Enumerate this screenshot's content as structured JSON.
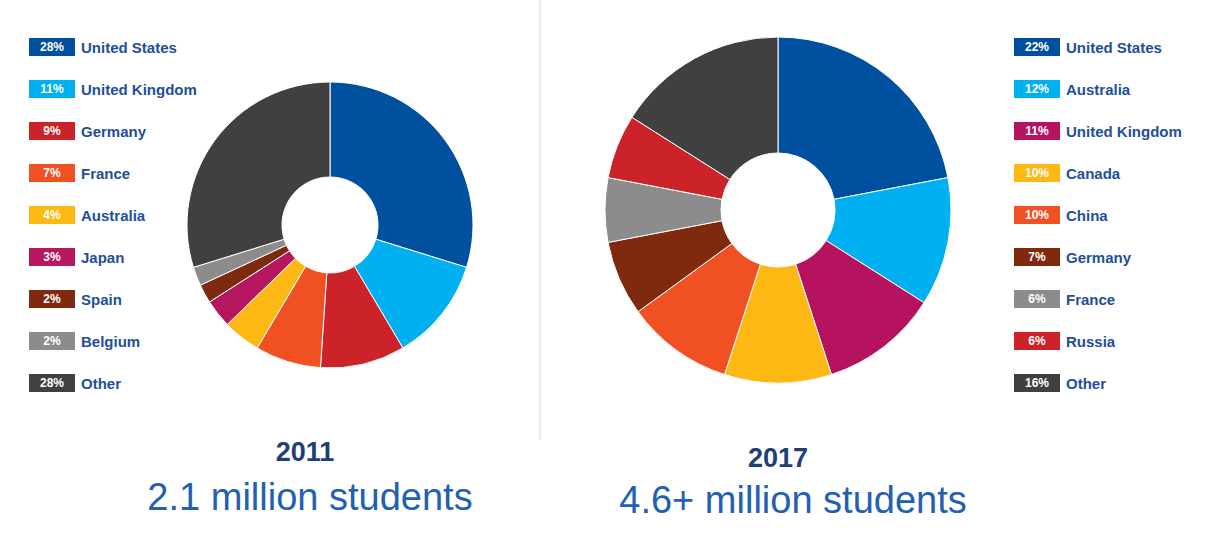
{
  "chart_data": [
    {
      "type": "pie",
      "title": "2011",
      "subtitle": "2.1 million students",
      "categories": [
        "United States",
        "United Kingdom",
        "Germany",
        "France",
        "Australia",
        "Japan",
        "Spain",
        "Belgium",
        "Other"
      ],
      "values": [
        28,
        11,
        9,
        7,
        4,
        3,
        2,
        2,
        28
      ],
      "value_labels": [
        "28%",
        "11%",
        "9%",
        "7%",
        "4%",
        "3%",
        "2%",
        "2%",
        "28%"
      ],
      "colors": [
        "#0050a0",
        "#00b0f0",
        "#cc2229",
        "#f05022",
        "#fdb813",
        "#b5175f",
        "#7f2a0e",
        "#8c8c8c",
        "#404040"
      ],
      "legend": "top-left"
    },
    {
      "type": "pie",
      "title": "2017",
      "subtitle": "4.6+ million students",
      "categories": [
        "United States",
        "Australia",
        "United Kingdom",
        "Canada",
        "China",
        "Germany",
        "France",
        "Russia",
        "Other"
      ],
      "values": [
        22,
        12,
        11,
        10,
        10,
        7,
        6,
        6,
        16
      ],
      "value_labels": [
        "22%",
        "12%",
        "11%",
        "10%",
        "10%",
        "7%",
        "6%",
        "6%",
        "16%"
      ],
      "colors": [
        "#0050a0",
        "#00b0f0",
        "#b5135f",
        "#fdb813",
        "#f05022",
        "#7f2a0e",
        "#8c8c8c",
        "#cc2229",
        "#404040"
      ],
      "legend": "top-right"
    }
  ]
}
